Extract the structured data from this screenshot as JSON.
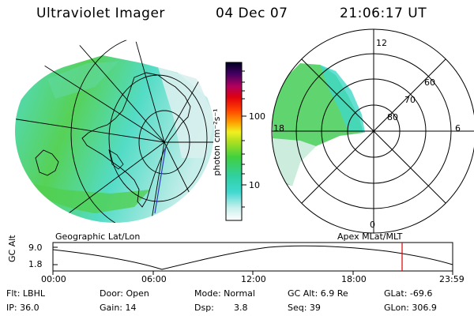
{
  "header": {
    "title": "Ultraviolet Imager",
    "date": "04 Dec 07",
    "time": "21:06:17 UT"
  },
  "colorbar": {
    "unit": "photon cm⁻²s⁻¹",
    "tick_100": "100",
    "tick_10": "10"
  },
  "polar_plot": {
    "label_12": "12",
    "label_18": "18",
    "label_6": "6",
    "label_0": "0",
    "label_60": "60",
    "label_70": "70",
    "label_80": "80"
  },
  "map_labels": {
    "left": "Geographic Lat/Lon",
    "right": "Apex MLat/MLT"
  },
  "timeline": {
    "axis_label": "GC Alt",
    "y_max": "9.0",
    "y_min": "1.8",
    "ticks": [
      "00:00",
      "06:00",
      "12:00",
      "18:00",
      "23:59"
    ],
    "current_marker_color": "#dd0000"
  },
  "info": {
    "row1": {
      "flt": "Flt: LBHL",
      "door": "Door: Open",
      "mode": "Mode: Normal",
      "gcalt": "GC Alt: 6.9 Re",
      "glat": "GLat: -69.6"
    },
    "row2": {
      "ip": "IP: 36.0",
      "gain": "Gain: 14",
      "dsp_label": "Dsp:",
      "dsp_value": "3.8",
      "seq": "Seq: 39",
      "glon": "GLon: 306.9"
    }
  }
}
